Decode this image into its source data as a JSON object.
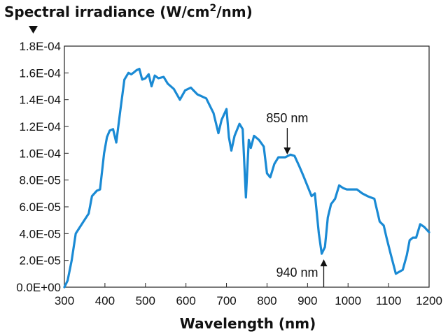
{
  "chart_data": {
    "type": "line",
    "ylabel": {
      "main": "Spectral irradiance (W/cm",
      "sup": "2",
      "tail": "/nm)"
    },
    "xlabel": "Wavelength (nm)",
    "xlim": [
      300,
      1200
    ],
    "ylim": [
      0,
      0.00018
    ],
    "grid": false,
    "x_ticks": [
      "300",
      "400",
      "500",
      "600",
      "700",
      "800",
      "900",
      "1000",
      "1100",
      "1200"
    ],
    "y_ticks": [
      "0.0E+00",
      "2.0E-05",
      "4.0E-05",
      "6.0E-05",
      "8.0E-05",
      "1.0E-04",
      "1.2E-04",
      "1.4E-04",
      "1.6E-04",
      "1.8E-04"
    ],
    "line_color": "#1a8ad4",
    "annotations": [
      {
        "text": "850 nm",
        "x": 850,
        "y": 9.7e-05,
        "direction": "down"
      },
      {
        "text": "940 nm",
        "x": 940,
        "y": 2.5e-05,
        "direction": "up"
      }
    ],
    "series": [
      {
        "x": [
          300,
          308,
          318,
          328,
          345,
          360,
          368,
          380,
          388,
          398,
          405,
          412,
          420,
          428,
          438,
          448,
          458,
          465,
          470,
          478,
          485,
          492,
          500,
          508,
          515,
          523,
          532,
          545,
          555,
          570,
          585,
          598,
          612,
          628,
          650,
          668,
          680,
          688,
          700,
          706,
          712,
          720,
          732,
          740,
          748,
          755,
          760,
          768,
          780,
          792,
          800,
          808,
          818,
          828,
          845,
          858,
          868,
          880,
          890,
          910,
          918,
          928,
          935,
          943,
          950,
          958,
          968,
          978,
          988,
          997,
          1010,
          1022,
          1035,
          1048,
          1065,
          1078,
          1088,
          1095,
          1105,
          1118,
          1135,
          1145,
          1152,
          1160,
          1168,
          1178,
          1188,
          1200
        ],
        "y": [
          0.0,
          5e-06,
          2e-05,
          4e-05,
          4.8e-05,
          5.5e-05,
          6.8e-05,
          7.2e-05,
          7.3e-05,
          0.0001,
          0.000112,
          0.000117,
          0.000118,
          0.000108,
          0.000132,
          0.000155,
          0.00016,
          0.000159,
          0.00016,
          0.000162,
          0.000163,
          0.000155,
          0.000156,
          0.000159,
          0.00015,
          0.000158,
          0.000156,
          0.000157,
          0.000152,
          0.000148,
          0.00014,
          0.000147,
          0.000149,
          0.000144,
          0.000141,
          0.00013,
          0.000115,
          0.000125,
          0.000133,
          0.000112,
          0.000102,
          0.000113,
          0.000122,
          0.000118,
          6.7e-05,
          0.00011,
          0.000104,
          0.000113,
          0.00011,
          0.000105,
          8.5e-05,
          8.2e-05,
          9.2e-05,
          9.7e-05,
          9.7e-05,
          9.9e-05,
          9.8e-05,
          9e-05,
          8.3e-05,
          6.8e-05,
          7e-05,
          4e-05,
          2.5e-05,
          3e-05,
          5.2e-05,
          6.2e-05,
          6.6e-05,
          7.6e-05,
          7.4e-05,
          7.3e-05,
          7.3e-05,
          7.3e-05,
          7e-05,
          6.8e-05,
          6.6e-05,
          4.9e-05,
          4.6e-05,
          3.7e-05,
          2.5e-05,
          1e-05,
          1.3e-05,
          2.4e-05,
          3.5e-05,
          3.7e-05,
          3.7e-05,
          4.7e-05,
          4.5e-05,
          4.1e-05
        ]
      }
    ]
  }
}
